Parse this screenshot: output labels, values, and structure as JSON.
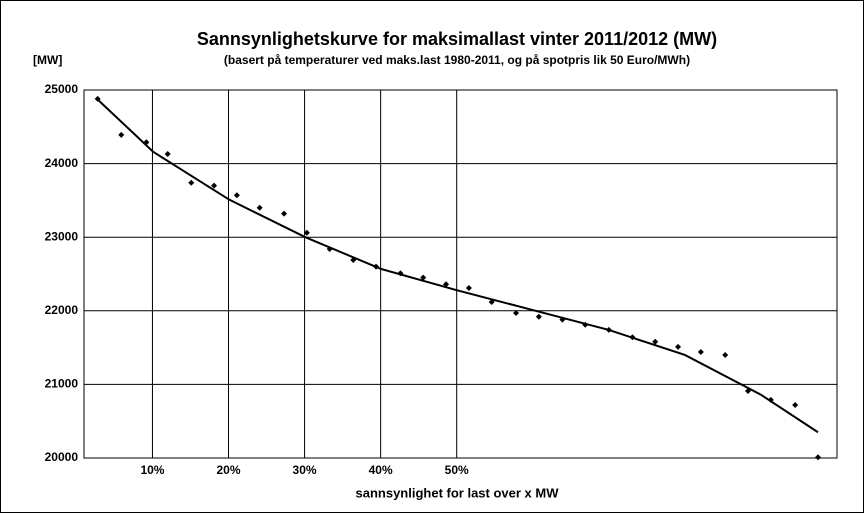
{
  "chart_data": {
    "type": "scatter",
    "title": "Sannsynlighetskurve for maksimallast vinter 2011/2012 (MW)",
    "subtitle": "(basert på temperaturer  ved maks.last 1980-2011,  og på spotpris lik 50 Euro/MWh)",
    "y_label": "[MW]",
    "x_label": "sannsynlighet for last over  x MW",
    "xlim": [
      1,
      100
    ],
    "ylim": [
      20000,
      25000
    ],
    "xticks": [
      {
        "value": 10,
        "label": "10%"
      },
      {
        "value": 20,
        "label": "20%"
      },
      {
        "value": 30,
        "label": "30%"
      },
      {
        "value": 40,
        "label": "40%"
      },
      {
        "value": 50,
        "label": "50%"
      }
    ],
    "yticks": [
      20000,
      21000,
      22000,
      23000,
      24000,
      25000
    ],
    "grid": true,
    "series": [
      {
        "style": "markers",
        "color": "#000000",
        "x": [
          2.8,
          5.9,
          9.2,
          12.0,
          15.1,
          18.1,
          21.1,
          24.1,
          27.3,
          30.3,
          33.3,
          36.4,
          39.4,
          42.6,
          45.6,
          48.6,
          51.6,
          54.6,
          57.8,
          60.8,
          63.9,
          66.9,
          70.0,
          73.1,
          76.1,
          79.1,
          82.1,
          85.3,
          88.3,
          91.3,
          94.5,
          97.5
        ],
        "values": [
          24880,
          24390,
          24290,
          24130,
          23740,
          23700,
          23570,
          23400,
          23320,
          23060,
          22840,
          22690,
          22600,
          22510,
          22450,
          22360,
          22310,
          22120,
          21970,
          21920,
          21880,
          21810,
          21740,
          21640,
          21580,
          21510,
          21440,
          21400,
          20910,
          20790,
          20720,
          20010
        ]
      },
      {
        "style": "line",
        "color": "#000000",
        "x": [
          2.6,
          10.1,
          20.1,
          30.1,
          40,
          50,
          60,
          70,
          80,
          90,
          97.5
        ],
        "values": [
          24890,
          24160,
          23510,
          23000,
          22570,
          22280,
          22010,
          21740,
          21400,
          20860,
          20350
        ]
      }
    ]
  }
}
